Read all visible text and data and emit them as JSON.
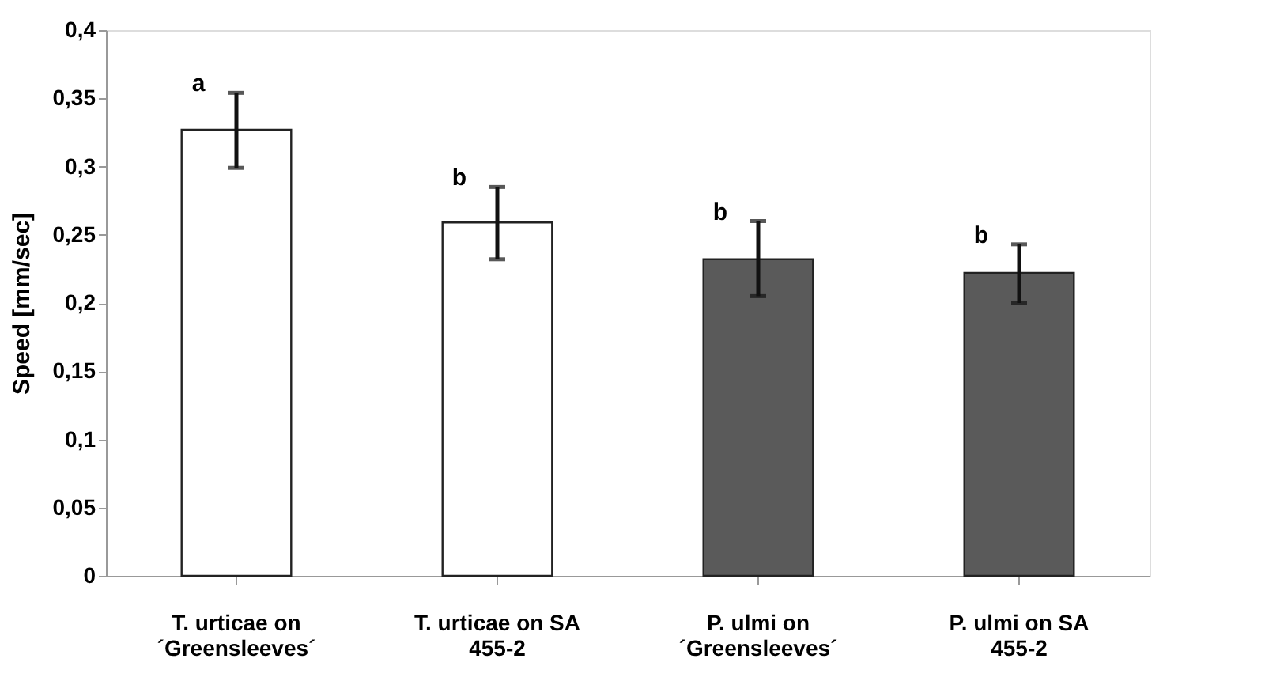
{
  "chart_data": {
    "type": "bar",
    "ylabel": "Speed [mm/sec]",
    "categories": [
      "T. urticae on\n´Greensleeves´",
      "T. urticae on SA\n455-2",
      "P. ulmi on\n´Greensleeves´",
      "P. ulmi on SA\n455-2"
    ],
    "values": [
      0.327,
      0.259,
      0.232,
      0.222
    ],
    "colors": [
      "#ffffff",
      "#ffffff",
      "#5a5a5a",
      "#5a5a5a"
    ],
    "errors": [
      [
        0.299,
        0.354
      ],
      [
        0.232,
        0.285
      ],
      [
        0.205,
        0.26
      ],
      [
        0.2,
        0.243
      ]
    ],
    "ylim": [
      0,
      0.4
    ],
    "yticks": [
      0,
      {
        "value": 0.05,
        "label": "0,05"
      },
      {
        "value": 0.1,
        "label": "0,1"
      },
      {
        "value": 0.15,
        "label": "0,15"
      },
      {
        "value": 0.2,
        "label": "0,2"
      },
      {
        "value": 0.25,
        "label": "0,25"
      },
      {
        "value": 0.3,
        "label": "0,3"
      },
      {
        "value": 0.35,
        "label": "0,35"
      },
      {
        "value": 0.4,
        "label": "0,4"
      }
    ],
    "annotations": [
      {
        "text": "a",
        "x": "T. urticae on\n´Greensleeves´",
        "y": 0.354
      },
      {
        "text": "b",
        "x": "T. urticae on SA\n455-2",
        "y": 0.285
      },
      {
        "text": "b",
        "x": "P. ulmi on\n´Greensleeves´",
        "y": 0.26
      },
      {
        "text": "b",
        "x": "P. ulmi on SA\n455-2",
        "y": 0.243
      }
    ],
    "grid": false
  }
}
